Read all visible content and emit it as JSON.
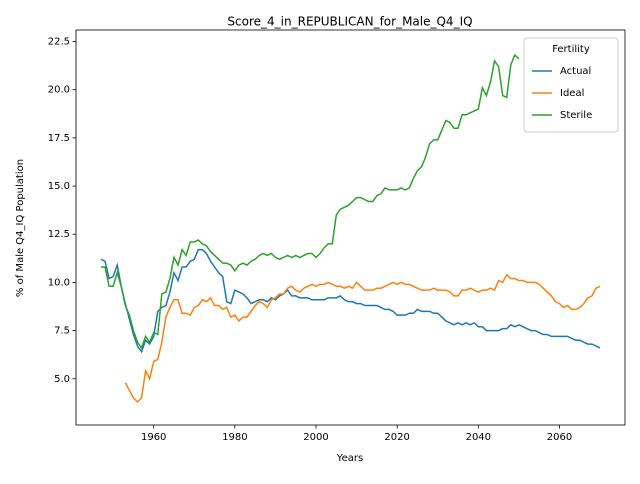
{
  "chart_data": {
    "type": "line",
    "title": "Score_4_in_REPUBLICAN_for_Male_Q4_IQ",
    "x_label": "Years",
    "y_label": "% of Male Q4_IQ Population",
    "legend_title": "Fertility",
    "legend": "upper right",
    "x": [
      1947,
      1948,
      1949,
      1950,
      1951,
      1952,
      1953,
      1954,
      1955,
      1956,
      1957,
      1958,
      1959,
      1960,
      1961,
      1962,
      1963,
      1964,
      1965,
      1966,
      1967,
      1968,
      1969,
      1970,
      1971,
      1972,
      1973,
      1974,
      1975,
      1976,
      1977,
      1978,
      1979,
      1980,
      1981,
      1982,
      1983,
      1984,
      1985,
      1986,
      1987,
      1988,
      1989,
      1990,
      1991,
      1992,
      1993,
      1994,
      1995,
      1996,
      1997,
      1998,
      1999,
      2000,
      2001,
      2002,
      2003,
      2004,
      2005,
      2006,
      2007,
      2008,
      2009,
      2010,
      2011,
      2012,
      2013,
      2014,
      2015,
      2016,
      2017,
      2018,
      2019,
      2020,
      2021,
      2022,
      2023,
      2024,
      2025,
      2026,
      2027,
      2028,
      2029,
      2030,
      2031,
      2032,
      2033,
      2034,
      2035,
      2036,
      2037,
      2038,
      2039,
      2040,
      2041,
      2042,
      2043,
      2044,
      2045,
      2046,
      2047,
      2048,
      2049,
      2050,
      2051,
      2052,
      2053,
      2054,
      2055,
      2056,
      2057,
      2058,
      2059,
      2060,
      2061,
      2062,
      2063,
      2064,
      2065,
      2066,
      2067,
      2068,
      2069,
      2070
    ],
    "series": [
      {
        "name": "Actual",
        "color": "#1f77b4",
        "values": [
          11.2,
          11.1,
          10.2,
          10.3,
          10.9,
          9.8,
          8.9,
          8.1,
          7.3,
          6.7,
          6.4,
          7.0,
          6.8,
          7.2,
          8.5,
          8.7,
          8.8,
          9.5,
          10.5,
          10.1,
          10.8,
          10.8,
          11.1,
          11.2,
          11.7,
          11.7,
          11.5,
          11.1,
          10.8,
          10.5,
          10.3,
          9.0,
          8.9,
          9.6,
          9.5,
          9.4,
          9.2,
          8.9,
          9.0,
          9.1,
          9.1,
          9.0,
          9.2,
          9.1,
          9.3,
          9.4,
          9.6,
          9.3,
          9.3,
          9.2,
          9.2,
          9.2,
          9.1,
          9.1,
          9.1,
          9.1,
          9.2,
          9.2,
          9.2,
          9.3,
          9.1,
          9.0,
          9.0,
          8.9,
          8.9,
          8.8,
          8.8,
          8.8,
          8.8,
          8.7,
          8.6,
          8.6,
          8.5,
          8.3,
          8.3,
          8.3,
          8.4,
          8.4,
          8.6,
          8.5,
          8.5,
          8.5,
          8.4,
          8.4,
          8.2,
          8.0,
          7.9,
          7.8,
          7.9,
          7.8,
          7.9,
          7.8,
          7.9,
          7.7,
          7.7,
          7.5,
          7.5,
          7.5,
          7.5,
          7.6,
          7.6,
          7.8,
          7.7,
          7.8,
          7.7,
          7.6,
          7.5,
          7.5,
          7.4,
          7.3,
          7.3,
          7.2,
          7.2,
          7.2,
          7.2,
          7.2,
          7.1,
          7.0,
          7.0,
          6.9,
          6.8,
          6.8,
          6.7,
          6.6
        ]
      },
      {
        "name": "Ideal",
        "color": "#ff7f0e",
        "values": [
          null,
          null,
          null,
          null,
          null,
          null,
          4.8,
          4.4,
          4.0,
          3.8,
          4.0,
          5.4,
          5.0,
          5.9,
          6.0,
          6.9,
          8.2,
          8.7,
          9.1,
          9.1,
          8.4,
          8.4,
          8.3,
          8.7,
          8.8,
          9.1,
          9.0,
          9.2,
          8.8,
          8.8,
          8.6,
          8.7,
          8.2,
          8.3,
          8.0,
          8.2,
          8.2,
          8.5,
          8.8,
          9.0,
          8.9,
          8.7,
          9.1,
          9.2,
          9.4,
          9.4,
          9.7,
          9.8,
          9.6,
          9.5,
          9.7,
          9.8,
          9.9,
          9.8,
          9.9,
          9.9,
          10.0,
          9.9,
          9.8,
          9.8,
          9.7,
          9.8,
          9.7,
          10.0,
          9.8,
          9.6,
          9.6,
          9.6,
          9.7,
          9.7,
          9.8,
          9.9,
          10.0,
          9.9,
          10.0,
          9.9,
          9.9,
          9.8,
          9.7,
          9.6,
          9.6,
          9.6,
          9.7,
          9.6,
          9.6,
          9.6,
          9.5,
          9.3,
          9.3,
          9.6,
          9.6,
          9.7,
          9.6,
          9.5,
          9.6,
          9.6,
          9.7,
          9.6,
          10.1,
          10.0,
          10.4,
          10.2,
          10.2,
          10.1,
          10.1,
          10.0,
          10.0,
          10.0,
          9.9,
          9.7,
          9.5,
          9.3,
          9.0,
          8.9,
          8.7,
          8.8,
          8.6,
          8.6,
          8.7,
          8.9,
          9.2,
          9.3,
          9.7,
          9.8
        ]
      },
      {
        "name": "Sterile",
        "color": "#2ca02c",
        "values": [
          10.8,
          10.8,
          9.8,
          9.8,
          10.5,
          9.8,
          8.8,
          8.3,
          7.5,
          6.9,
          6.6,
          7.2,
          6.9,
          7.4,
          7.3,
          9.4,
          9.5,
          10.2,
          11.3,
          10.9,
          11.7,
          11.4,
          12.1,
          12.1,
          12.2,
          12.0,
          11.9,
          11.6,
          11.4,
          11.2,
          11.0,
          11.0,
          10.9,
          10.6,
          10.9,
          11.0,
          10.9,
          11.1,
          11.2,
          11.4,
          11.5,
          11.4,
          11.5,
          11.3,
          11.2,
          11.3,
          11.4,
          11.3,
          11.4,
          11.3,
          11.4,
          11.5,
          11.5,
          11.3,
          11.5,
          11.8,
          12.0,
          12.0,
          13.5,
          13.8,
          13.9,
          14.0,
          14.2,
          14.4,
          14.4,
          14.3,
          14.2,
          14.2,
          14.5,
          14.6,
          14.9,
          14.8,
          14.8,
          14.8,
          14.9,
          14.8,
          14.9,
          15.4,
          15.8,
          16.0,
          16.5,
          17.2,
          17.4,
          17.4,
          17.9,
          18.4,
          18.3,
          18.0,
          18.0,
          18.7,
          18.7,
          18.8,
          18.9,
          19.0,
          20.1,
          19.7,
          20.4,
          21.5,
          21.2,
          19.7,
          19.6,
          21.3,
          21.8,
          21.6,
          null,
          null,
          null,
          null,
          null,
          null,
          null,
          null,
          null,
          null,
          null,
          null,
          null,
          null,
          null,
          null,
          null,
          null,
          null,
          null
        ]
      }
    ],
    "xlim": [
      1940.85,
      2076.15
    ],
    "ylim": [
      2.6,
      23.1
    ],
    "xticks": [
      1960,
      1980,
      2000,
      2020,
      2040,
      2060
    ],
    "yticks": [
      {
        "value": 5,
        "label": "5.0"
      },
      7.5,
      {
        "value": 10,
        "label": "10.0"
      },
      12.5,
      {
        "value": 15,
        "label": "15.0"
      },
      17.5,
      {
        "value": 20,
        "label": "20.0"
      },
      22.5
    ]
  }
}
